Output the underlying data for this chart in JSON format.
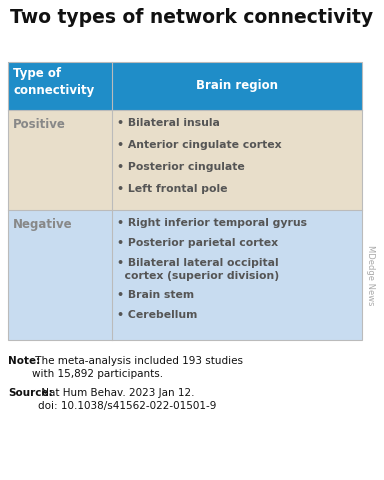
{
  "title": "Two types of network connectivity",
  "header_col1": "Type of\nconnectivity",
  "header_col2": "Brain region",
  "header_bg": "#1F8DC8",
  "header_text_color": "#FFFFFF",
  "row1_label": "Positive",
  "row1_bg": "#E8DECA",
  "row1_items": [
    "Bilateral insula",
    "Anterior cingulate cortex",
    "Posterior cingulate",
    "Left frontal pole"
  ],
  "row2_label": "Negative",
  "row2_bg": "#C8DCF0",
  "row2_items": [
    "Right inferior temporal gyrus",
    "Posterior parietal cortex",
    "Bilateral lateral occipital\n  cortex (superior division)",
    "Brain stem",
    "Cerebellum"
  ],
  "row_label_color": "#888888",
  "row_item_color": "#555555",
  "note_bold": "Note:",
  "note_text": " The meta-analysis included 193 studies\nwith 15,892 participants.",
  "source_bold": "Source:",
  "source_text": " Nat Hum Behav. 2023 Jan 12.\ndoi: 10.1038/s41562-022-01501-9",
  "watermark": "MDedge News",
  "border_color": "#BBBBBB",
  "title_fontsize": 13.5,
  "header_fontsize": 8.5,
  "label_fontsize": 8.5,
  "item_fontsize": 7.8,
  "note_fontsize": 7.5,
  "watermark_fontsize": 6
}
